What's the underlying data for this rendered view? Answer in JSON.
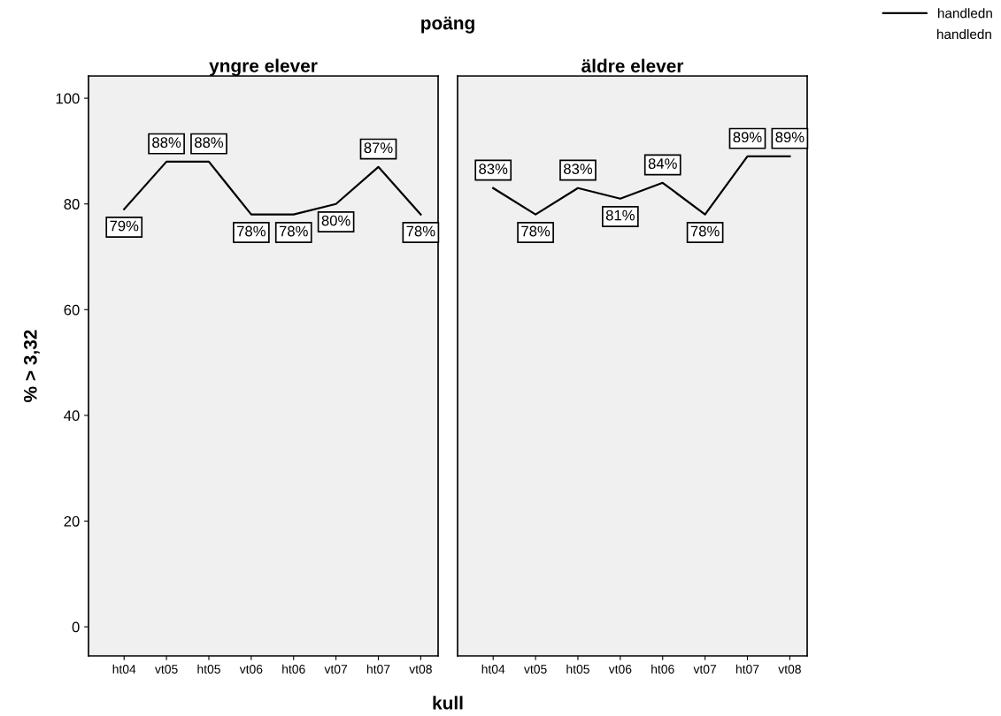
{
  "chart_data": [
    {
      "type": "line",
      "title": "yngre elever",
      "ylabel": "% > 3,32",
      "annotations": [
        "poäng",
        "kull"
      ],
      "categories": [
        "ht04",
        "vt05",
        "ht05",
        "vt06",
        "ht06",
        "vt07",
        "ht07",
        "vt08"
      ],
      "ylim": [
        -5.5,
        104.2
      ],
      "yticks": [
        0,
        20,
        40,
        60,
        80,
        100
      ],
      "grid": false,
      "series": [
        {
          "color": "#000000",
          "values": [
            79,
            88,
            88,
            78,
            78,
            80,
            87,
            78
          ],
          "value_labels": [
            "79%",
            "88%",
            "88%",
            "78%",
            "78%",
            "80%",
            "87%",
            "78%"
          ]
        }
      ]
    },
    {
      "type": "line",
      "title": "äldre elever",
      "annotations": [
        "handledn"
      ],
      "categories": [
        "ht04",
        "vt05",
        "ht05",
        "vt06",
        "ht06",
        "vt07",
        "ht07",
        "vt08"
      ],
      "ylim": [
        -5.5,
        104.2
      ],
      "grid": false,
      "legend": "top right",
      "tick_labels": "x",
      "series": [
        {
          "name": "handledn",
          "color": "#000000",
          "values": [
            83,
            78,
            83,
            81,
            84,
            78,
            89,
            89
          ],
          "value_labels": [
            "83%",
            "78%",
            "83%",
            "81%",
            "84%",
            "78%",
            "89%",
            "89%"
          ]
        }
      ]
    }
  ]
}
